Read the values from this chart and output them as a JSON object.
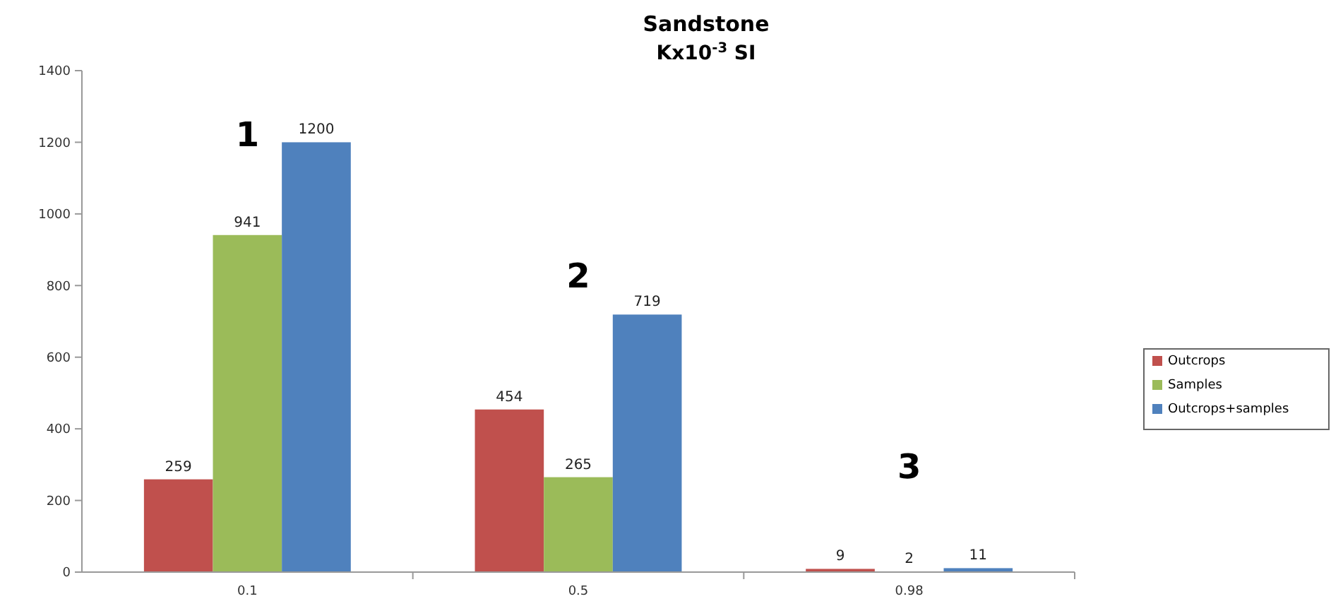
{
  "chart_data": {
    "type": "bar",
    "title": "Sandstone",
    "subtitle": "Κx10$^{-3}$ SI",
    "categories": [
      "0.1",
      "0.5",
      "0.98"
    ],
    "series": [
      {
        "name": "Outcrops",
        "color": "#c0504d",
        "values": [
          259,
          454,
          9
        ]
      },
      {
        "name": "Samples",
        "color": "#9bbb59",
        "values": [
          941,
          265,
          2
        ]
      },
      {
        "name": "Outcrops+samples",
        "color": "#4f81bd",
        "values": [
          1200,
          719,
          11
        ]
      }
    ],
    "ylim": [
      0,
      1400
    ],
    "yticks": [
      0,
      200,
      400,
      600,
      800,
      1000,
      1200,
      1400
    ],
    "data_labels": true,
    "legend": "right",
    "grid": false,
    "annotations": [
      "1",
      "2",
      "3"
    ]
  }
}
